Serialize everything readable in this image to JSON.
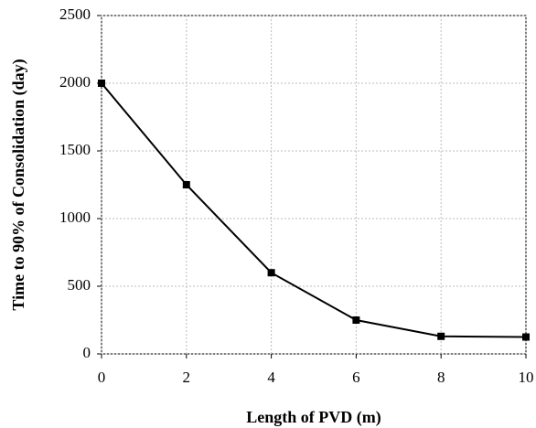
{
  "chart_data": {
    "type": "line",
    "x_label": "Length of PVD (m)",
    "y_label": "Time to 90% of Consolidation (day)",
    "x": [
      0,
      2,
      4,
      6,
      8,
      10
    ],
    "values": [
      2000,
      1250,
      600,
      250,
      130,
      125
    ],
    "color": "#000000",
    "xlim": [
      0,
      10
    ],
    "xticks": [
      0,
      2,
      4,
      6,
      8,
      10
    ],
    "ylim": [
      0,
      2500
    ],
    "yticks": [
      0,
      500,
      1000,
      1500,
      2000,
      2500
    ],
    "grid": true,
    "marker": "square"
  }
}
